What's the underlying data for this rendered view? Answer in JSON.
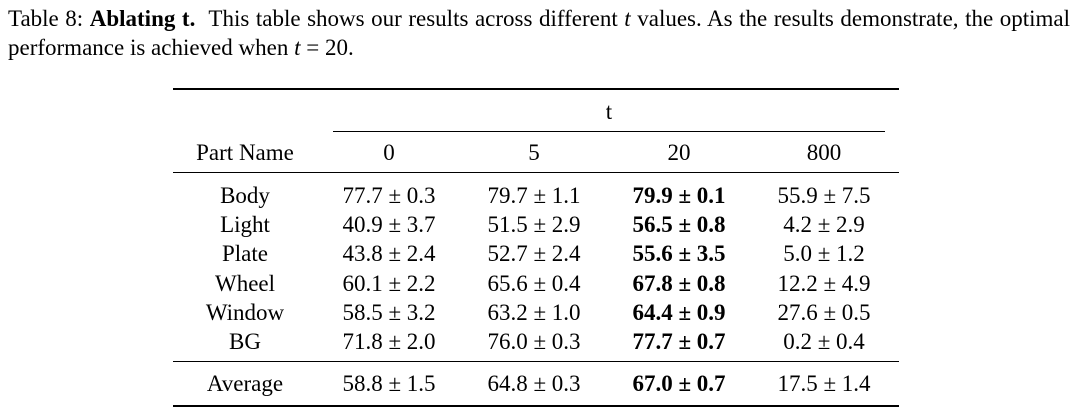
{
  "caption": {
    "label": "Table 8:",
    "title": "Ablating t.",
    "text_1": "This table shows our results across different",
    "var_t": "t",
    "text_2": "values. As the results demonstrate, the optimal performance is achieved when",
    "var_t2": "t",
    "text_3": "= 20."
  },
  "table": {
    "group_header": "t",
    "columns": [
      "Part Name",
      "0",
      "5",
      "20",
      "800"
    ],
    "rows": [
      {
        "name": "Body",
        "values": [
          "77.7 ± 0.3",
          "79.7 ± 1.1",
          "79.9 ± 0.1",
          "55.9 ± 7.5"
        ]
      },
      {
        "name": "Light",
        "values": [
          "40.9 ± 3.7",
          "51.5 ± 2.9",
          "56.5 ± 0.8",
          "4.2 ± 2.9"
        ]
      },
      {
        "name": "Plate",
        "values": [
          "43.8 ± 2.4",
          "52.7 ± 2.4",
          "55.6 ± 3.5",
          "5.0 ± 1.2"
        ]
      },
      {
        "name": "Wheel",
        "values": [
          "60.1 ± 2.2",
          "65.6 ± 0.4",
          "67.8 ± 0.8",
          "12.2 ± 4.9"
        ]
      },
      {
        "name": "Window",
        "values": [
          "58.5 ± 3.2",
          "63.2 ± 1.0",
          "64.4 ± 0.9",
          "27.6 ± 0.5"
        ]
      },
      {
        "name": "BG",
        "values": [
          "71.8 ± 2.0",
          "76.0 ± 0.3",
          "77.7 ± 0.7",
          "0.2 ± 0.4"
        ]
      }
    ],
    "average": {
      "name": "Average",
      "values": [
        "58.8 ± 1.5",
        "64.8 ± 0.3",
        "67.0 ± 0.7",
        "17.5 ± 1.4"
      ]
    },
    "bold_column_index": 2
  }
}
